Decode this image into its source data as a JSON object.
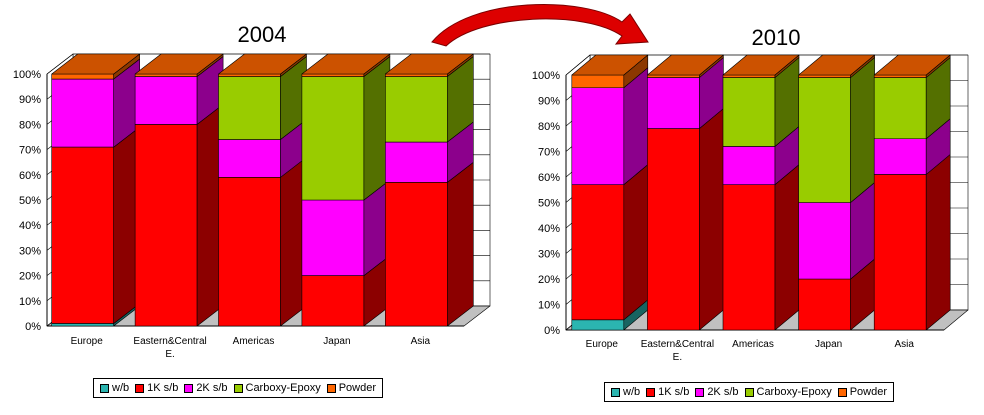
{
  "colors": {
    "w/b": "#2bb5b0",
    "1K s/b": "#ff0000",
    "2K s/b": "#ff00ff",
    "Carboxy-Epoxy": "#99cc00",
    "Powder": "#ff6600",
    "floor": "#c0c0c0",
    "arrow": "#dd0000"
  },
  "chart_data": [
    {
      "type": "bar",
      "stacked": true,
      "title": "2004",
      "categories": [
        "Europe",
        "Eastern&Central E.",
        "Americas",
        "Japan",
        "Asia"
      ],
      "series": [
        {
          "name": "w/b",
          "values": [
            1,
            0,
            0,
            0,
            0
          ]
        },
        {
          "name": "1K s/b",
          "values": [
            70,
            80,
            59,
            20,
            57
          ]
        },
        {
          "name": "2K s/b",
          "values": [
            27,
            19,
            15,
            30,
            16
          ]
        },
        {
          "name": "Carboxy-Epoxy",
          "values": [
            0,
            0,
            25,
            49,
            26
          ]
        },
        {
          "name": "Powder",
          "values": [
            2,
            1,
            1,
            1,
            1
          ]
        }
      ],
      "ylim": [
        0,
        100
      ],
      "yticks": [
        "0%",
        "10%",
        "20%",
        "30%",
        "40%",
        "50%",
        "60%",
        "70%",
        "80%",
        "90%",
        "100%"
      ],
      "grid": true,
      "legend": "bottom"
    },
    {
      "type": "bar",
      "stacked": true,
      "title": "2010",
      "categories": [
        "Europe",
        "Eastern&Central E.",
        "Americas",
        "Japan",
        "Asia"
      ],
      "series": [
        {
          "name": "w/b",
          "values": [
            4,
            0,
            0,
            0,
            0
          ]
        },
        {
          "name": "1K s/b",
          "values": [
            53,
            79,
            57,
            20,
            61
          ]
        },
        {
          "name": "2K s/b",
          "values": [
            38,
            20,
            15,
            30,
            14
          ]
        },
        {
          "name": "Carboxy-Epoxy",
          "values": [
            0,
            0,
            27,
            49,
            24
          ]
        },
        {
          "name": "Powder",
          "values": [
            5,
            1,
            1,
            1,
            1
          ]
        }
      ],
      "ylim": [
        0,
        100
      ],
      "yticks": [
        "0%",
        "10%",
        "20%",
        "30%",
        "40%",
        "50%",
        "60%",
        "70%",
        "80%",
        "90%",
        "100%"
      ],
      "grid": true,
      "legend": "bottom"
    }
  ]
}
